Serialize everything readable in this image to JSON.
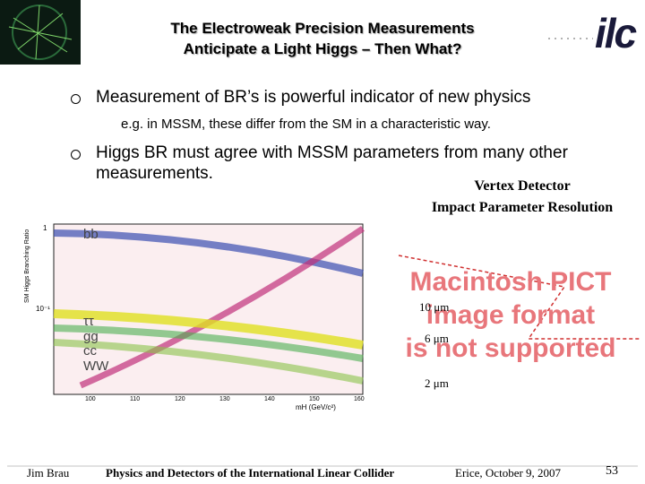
{
  "header": {
    "title_line1": "The Electroweak Precision Measurements",
    "title_line2": "Anticipate a Light Higgs – Then What?",
    "logo_text": "ilc"
  },
  "bullets": [
    {
      "text": "Measurement of BR’s is powerful indicator of new physics",
      "sub": "e.g. in MSSM, these differ from the SM in a characteristic way."
    },
    {
      "text_line1": "Higgs BR must agree with MSSM parameters from many other",
      "text_line2": "measurements."
    }
  ],
  "figure": {
    "y_axis_label": "SM Higgs Branching Ratio",
    "x_axis_label": "mH (GeV/c²)",
    "curve_labels": [
      "bb",
      "ττ",
      "gg",
      "cc",
      "WW"
    ],
    "y_tick_labels": [
      "1",
      "10⁻¹"
    ],
    "x_tick_labels": [
      "100",
      "110",
      "120",
      "130",
      "140",
      "150",
      "160"
    ]
  },
  "vertex_detector": {
    "title_line1": "Vertex Detector",
    "title_line2": "Impact Parameter Resolution",
    "labels": [
      "10 μm",
      "6 μm",
      "2 μm"
    ]
  },
  "pict_placeholder": {
    "line1": "Macintosh PICT",
    "line2": "image format",
    "line3": "is not supported"
  },
  "footer": {
    "author": "Jim Brau",
    "center": "Physics and Detectors of the International Linear Collider",
    "date": "Erice, October 9, 2007",
    "page": 53
  }
}
